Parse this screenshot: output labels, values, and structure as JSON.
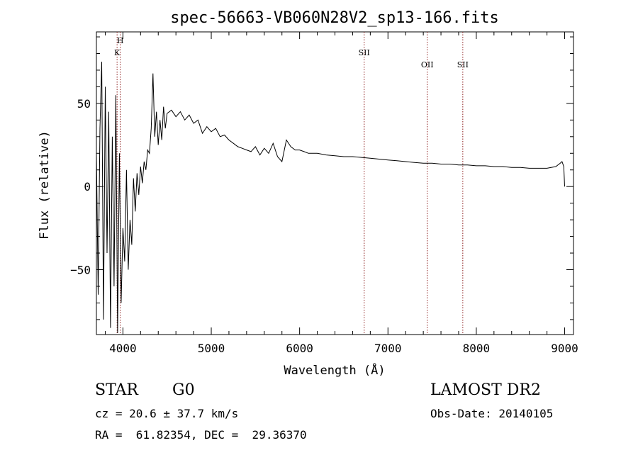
{
  "chart_data": {
    "type": "line",
    "title": "spec-56663-VB060N28V2_sp13-166.fits",
    "xlabel": "Wavelength (Å)",
    "ylabel": "Flux (relative)",
    "xlim": [
      3700,
      9100
    ],
    "ylim": [
      -89,
      93
    ],
    "xticks": [
      4000,
      5000,
      6000,
      7000,
      8000,
      9000
    ],
    "yticks": [
      -50,
      0,
      50
    ],
    "grid": false,
    "series": [
      {
        "color": "#000000",
        "x": [
          3700,
          3720,
          3740,
          3760,
          3780,
          3800,
          3820,
          3840,
          3860,
          3880,
          3900,
          3920,
          3940,
          3960,
          3980,
          4000,
          4020,
          4040,
          4060,
          4080,
          4100,
          4120,
          4140,
          4160,
          4180,
          4200,
          4220,
          4240,
          4260,
          4280,
          4300,
          4320,
          4340,
          4360,
          4380,
          4400,
          4420,
          4440,
          4460,
          4480,
          4500,
          4550,
          4600,
          4650,
          4700,
          4750,
          4800,
          4850,
          4900,
          4950,
          5000,
          5050,
          5100,
          5150,
          5200,
          5250,
          5300,
          5350,
          5400,
          5450,
          5500,
          5550,
          5600,
          5650,
          5700,
          5750,
          5800,
          5850,
          5900,
          5950,
          6000,
          6050,
          6100,
          6200,
          6300,
          6400,
          6500,
          6600,
          6700,
          6800,
          6900,
          7000,
          7100,
          7200,
          7300,
          7400,
          7500,
          7600,
          7700,
          7800,
          7900,
          8000,
          8100,
          8200,
          8300,
          8400,
          8500,
          8600,
          8700,
          8800,
          8900,
          8950,
          8970,
          8990,
          9000
        ],
        "y": [
          20,
          -65,
          35,
          75,
          -80,
          60,
          -40,
          45,
          -85,
          30,
          -60,
          55,
          -88,
          20,
          -70,
          -25,
          -45,
          10,
          -50,
          -20,
          -35,
          5,
          -15,
          8,
          -5,
          12,
          2,
          15,
          10,
          22,
          20,
          35,
          68,
          30,
          45,
          25,
          40,
          28,
          48,
          35,
          44,
          46,
          42,
          45,
          40,
          43,
          38,
          40,
          32,
          36,
          33,
          35,
          30,
          31,
          28,
          26,
          24,
          23,
          22,
          21,
          24,
          19,
          23,
          20,
          26,
          18,
          15,
          28,
          24,
          22,
          22,
          21,
          20,
          20,
          19,
          18.5,
          18,
          18,
          17.5,
          17,
          16.5,
          16,
          15.5,
          15,
          14.5,
          14,
          14,
          13.5,
          13.5,
          13,
          13,
          12.5,
          12.5,
          12,
          12,
          11.5,
          11.5,
          11,
          11,
          11,
          12,
          14,
          15,
          12,
          0
        ]
      }
    ],
    "lines": [
      {
        "label": "H",
        "x": 3970
      },
      {
        "label": "K",
        "x": 3934
      },
      {
        "label": "SII",
        "x": 6731
      },
      {
        "label": "OII",
        "x": 7445
      },
      {
        "label": "SII",
        "x": 7847
      }
    ]
  },
  "info": {
    "object_type": "STAR",
    "subclass": "G0",
    "survey": "LAMOST DR2",
    "redshift": "cz = 20.6 ± 37.7 km/s",
    "obs_date": "Obs-Date: 20140105",
    "coords": "RA =  61.82354, DEC =  29.36370"
  }
}
